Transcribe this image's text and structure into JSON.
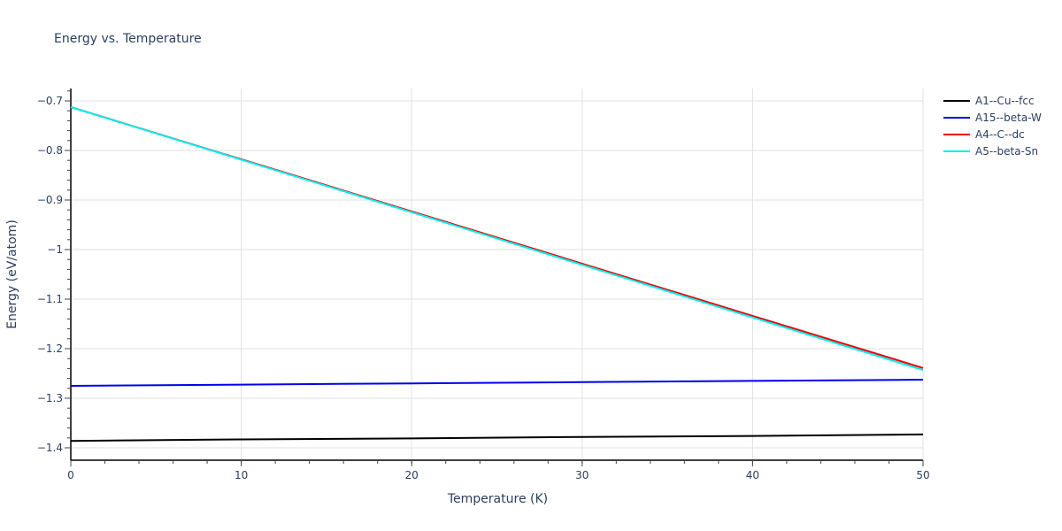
{
  "chart_data": {
    "type": "line",
    "title": "Energy vs. Temperature",
    "xlabel": "Temperature (K)",
    "ylabel": "Energy (eV/atom)",
    "xlim": [
      0,
      50
    ],
    "ylim": [
      -1.42,
      -0.675
    ],
    "grid": true,
    "legend_position": "right",
    "x_ticks": [
      "0",
      "10",
      "20",
      "30",
      "40",
      "50"
    ],
    "y_ticks": [
      "−0.7",
      "−0.8",
      "−0.9",
      "−1",
      "−1.1",
      "−1.2",
      "−1.3",
      "−1.4"
    ],
    "x": [
      0,
      10,
      20,
      30,
      40,
      50
    ],
    "series": [
      {
        "name": "A1--Cu--fcc",
        "color": "#000000",
        "values": [
          -1.386,
          -1.383,
          -1.381,
          -1.378,
          -1.376,
          -1.373
        ]
      },
      {
        "name": "A15--beta-W",
        "color": "#0000ee",
        "values": [
          -1.275,
          -1.2725,
          -1.27,
          -1.2675,
          -1.265,
          -1.2625
        ]
      },
      {
        "name": "A4--C--dc",
        "color": "#ee0000",
        "values": [
          -0.7125,
          -0.8178,
          -0.9231,
          -1.0284,
          -1.1337,
          -1.239
        ]
      },
      {
        "name": "A5--beta-Sn",
        "color": "#00eeee",
        "values": [
          -0.7125,
          -0.8186,
          -0.9247,
          -1.0308,
          -1.1369,
          -1.243
        ]
      }
    ]
  },
  "page": {
    "title": "Energy vs. Temperature"
  }
}
